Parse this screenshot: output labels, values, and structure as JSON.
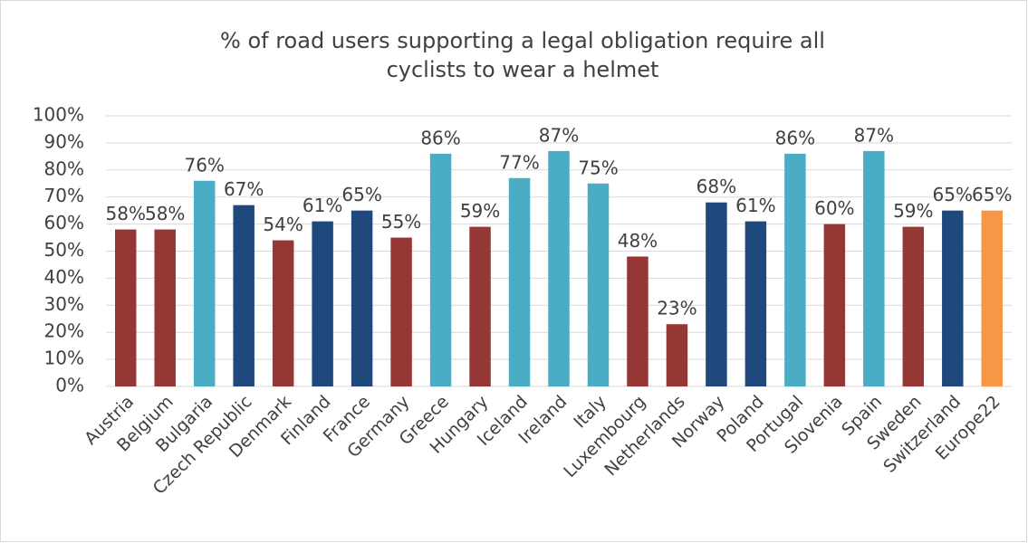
{
  "chart_data": {
    "type": "bar",
    "title": [
      "% of road users supporting a legal obligation require all",
      "cyclists to wear a helmet"
    ],
    "categories": [
      "Austria",
      "Belgium",
      "Bulgaria",
      "Czech Republic",
      "Denmark",
      "Finland",
      "France",
      "Germany",
      "Greece",
      "Hungary",
      "Iceland",
      "Ireland",
      "Italy",
      "Luxembourg",
      "Netherlands",
      "Norway",
      "Poland",
      "Portugal",
      "Slovenia",
      "Spain",
      "Sweden",
      "Switzerland",
      "Europe22"
    ],
    "values": [
      58,
      58,
      76,
      67,
      54,
      61,
      65,
      55,
      86,
      59,
      77,
      87,
      75,
      48,
      23,
      68,
      61,
      86,
      60,
      87,
      59,
      65,
      65
    ],
    "value_labels": [
      "58%",
      "58%",
      "76%",
      "67%",
      "54%",
      "61%",
      "65%",
      "55%",
      "86%",
      "59%",
      "77%",
      "87%",
      "75%",
      "48%",
      "23%",
      "68%",
      "61%",
      "86%",
      "60%",
      "87%",
      "59%",
      "65%",
      "65%"
    ],
    "colors": [
      "#953735",
      "#953735",
      "#4bacc6",
      "#1f497d",
      "#953735",
      "#1f497d",
      "#1f497d",
      "#953735",
      "#4bacc6",
      "#953735",
      "#4bacc6",
      "#4bacc6",
      "#4bacc6",
      "#953735",
      "#953735",
      "#1f497d",
      "#1f497d",
      "#4bacc6",
      "#953735",
      "#4bacc6",
      "#953735",
      "#1f497d",
      "#f79646"
    ],
    "ylim": [
      0,
      100
    ],
    "yticks": [
      {
        "value": 0,
        "label": "0%"
      },
      {
        "value": 10,
        "label": "10%"
      },
      {
        "value": 20,
        "label": "20%"
      },
      {
        "value": 30,
        "label": "30%"
      },
      {
        "value": 40,
        "label": "40%"
      },
      {
        "value": 50,
        "label": "50%"
      },
      {
        "value": 60,
        "label": "60%"
      },
      {
        "value": 70,
        "label": "70%"
      },
      {
        "value": 80,
        "label": "80%"
      },
      {
        "value": 90,
        "label": "90%"
      },
      {
        "value": 100,
        "label": "100%"
      }
    ],
    "grid": true
  }
}
